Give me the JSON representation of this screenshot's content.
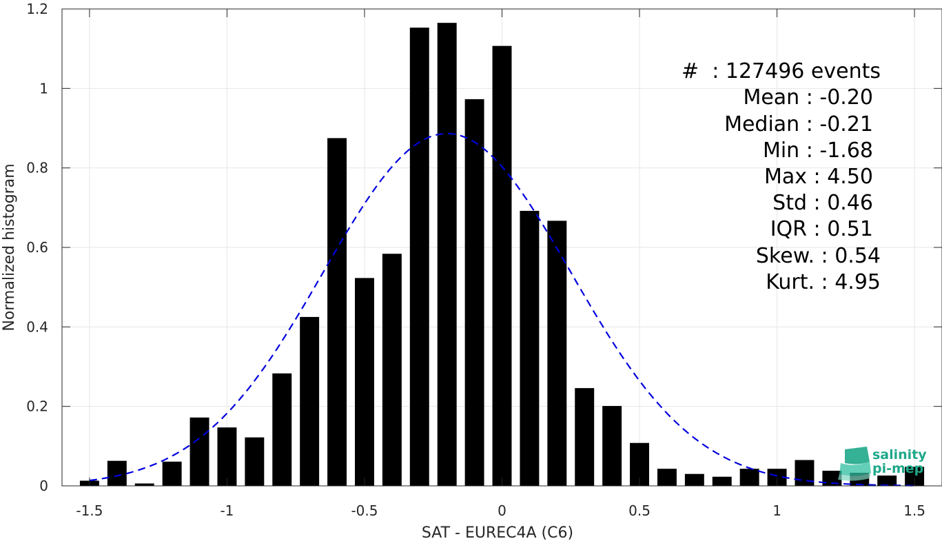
{
  "chart_data": {
    "type": "bar",
    "title": "",
    "xlabel": "SAT - EUREC4A (C6)",
    "ylabel": "Normalized histogram",
    "xlim": [
      -1.6,
      1.6
    ],
    "ylim": [
      0,
      1.2
    ],
    "xticks": [
      -1.5,
      -1,
      -0.5,
      0,
      0.5,
      1,
      1.5
    ],
    "xtick_labels": [
      "-1.5",
      "-1",
      "-0.5",
      "0",
      "0.5",
      "1",
      "1.5"
    ],
    "yticks": [
      0,
      0.2,
      0.4,
      0.6,
      0.8,
      1,
      1.2
    ],
    "ytick_labels": [
      "0",
      "0.2",
      "0.4",
      "0.6",
      "0.8",
      "1",
      "1.2"
    ],
    "grid": true,
    "bar_width": 0.07,
    "bar_color": "#000000",
    "fit_color": "#0000dd",
    "bins": [
      -1.5,
      -1.4,
      -1.3,
      -1.2,
      -1.1,
      -1.0,
      -0.9,
      -0.8,
      -0.7,
      -0.6,
      -0.5,
      -0.4,
      -0.3,
      -0.2,
      -0.1,
      0.0,
      0.1,
      0.2,
      0.3,
      0.4,
      0.5,
      0.6,
      0.7,
      0.8,
      0.9,
      1.0,
      1.1,
      1.2,
      1.3,
      1.4,
      1.5
    ],
    "values": [
      0.013,
      0.063,
      0.006,
      0.061,
      0.172,
      0.147,
      0.122,
      0.283,
      0.425,
      0.875,
      0.523,
      0.584,
      1.153,
      1.165,
      0.973,
      1.107,
      0.692,
      0.667,
      0.246,
      0.201,
      0.108,
      0.043,
      0.03,
      0.023,
      0.043,
      0.043,
      0.065,
      0.038,
      0.033,
      0.026,
      0.048
    ],
    "fit": {
      "type": "gaussian",
      "mean": -0.2,
      "std": 0.45,
      "style": "dashed"
    },
    "annotations": [
      "#  : 127496 events",
      "Mean : -0.20",
      "Median : -0.21",
      "Min : -1.68",
      "Max : 4.50",
      "Std : 0.46",
      "IQR : 0.51",
      "Skew. : 0.54",
      "Kurt. : 4.95"
    ]
  },
  "logo": {
    "line1": "salinity",
    "line2": "pi-mep"
  }
}
